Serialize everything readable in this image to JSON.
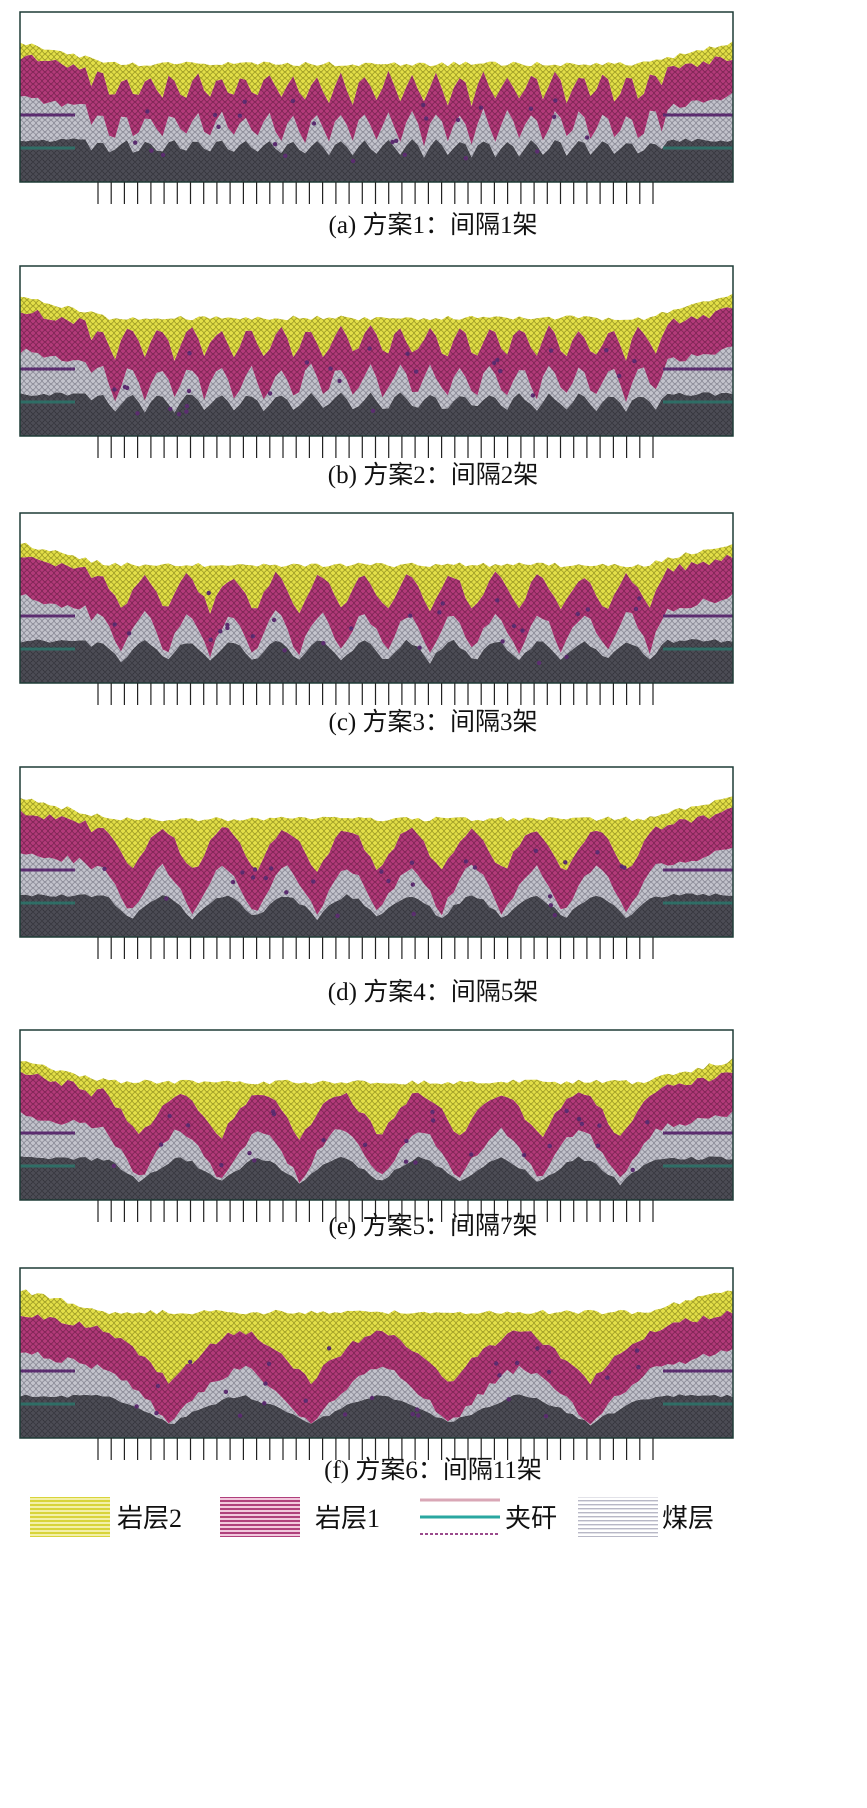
{
  "colors": {
    "rock2": "#dcd83c",
    "rock1": "#b03a78",
    "interlayer": "#2f6e66",
    "coal": "#b9b9c3",
    "floor": "#4a4a52",
    "seam_line": "#5b2c6f",
    "frame": "#1e3b36"
  },
  "panels": [
    {
      "id": "a",
      "label": "(a)  方案1：间隔1架",
      "interval": 1,
      "plan": "方案1"
    },
    {
      "id": "b",
      "label": "(b)  方案2：间隔2架",
      "interval": 2,
      "plan": "方案2"
    },
    {
      "id": "c",
      "label": "(c)  方案3：间隔3架",
      "interval": 3,
      "plan": "方案3"
    },
    {
      "id": "d",
      "label": "(d)  方案4：间隔5架",
      "interval": 5,
      "plan": "方案4"
    },
    {
      "id": "e",
      "label": "(e)  方案5：间隔7架",
      "interval": 7,
      "plan": "方案5"
    },
    {
      "id": "f",
      "label": "(f)  方案6：间隔11架",
      "interval": 11,
      "plan": "方案6"
    }
  ],
  "legend": [
    {
      "key": "rock2",
      "label": "岩层2",
      "icon": "yellow-hatch-swatch"
    },
    {
      "key": "rock1",
      "label": "岩层1",
      "icon": "magenta-hatch-swatch"
    },
    {
      "key": "interlayer",
      "label": "夹矸",
      "icon": "teal-lines-swatch"
    },
    {
      "key": "coal",
      "label": "煤层",
      "icon": "grey-dotted-swatch"
    }
  ]
}
